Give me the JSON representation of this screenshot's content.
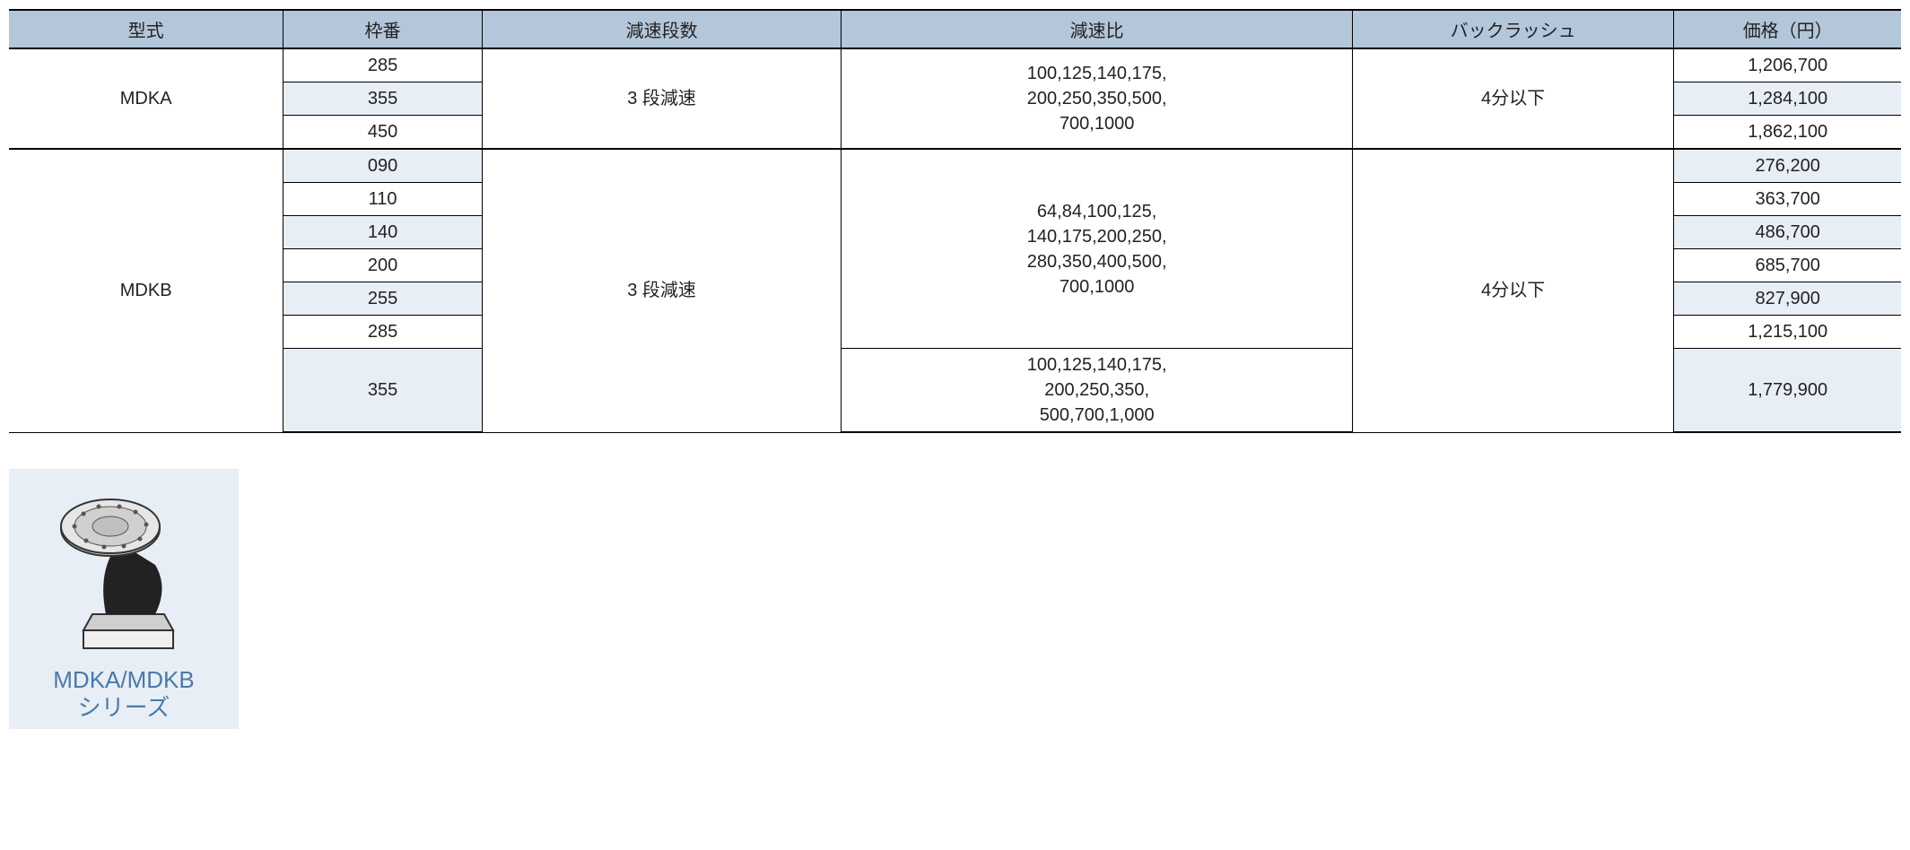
{
  "table": {
    "headers": [
      "型式",
      "枠番",
      "減速段数",
      "減速比",
      "バックラッシュ",
      "価格（円）"
    ],
    "col_widths_pct": [
      14.5,
      10.5,
      19,
      27,
      17,
      12
    ],
    "header_bg": "#b3c6da",
    "alt_bg": "#e8eef5",
    "groups": [
      {
        "model": "MDKA",
        "stage": "3 段減速",
        "backlash": "4分以下",
        "ratio_blocks": [
          {
            "lines": [
              "100,125,140,175,",
              "200,250,350,500,",
              "700,1000"
            ],
            "row_span": 3
          }
        ],
        "rows": [
          {
            "frame": "285",
            "price": "1,206,700",
            "alt": false
          },
          {
            "frame": "355",
            "price": "1,284,100",
            "alt": true
          },
          {
            "frame": "450",
            "price": "1,862,100",
            "alt": false
          }
        ]
      },
      {
        "model": "MDKB",
        "stage": "3 段減速",
        "backlash": "4分以下",
        "ratio_blocks": [
          {
            "lines": [
              "64,84,100,125,",
              "140,175,200,250,",
              "280,350,400,500,",
              "700,1000"
            ],
            "row_span": 6
          },
          {
            "lines": [
              "100,125,140,175,",
              "200,250,350,",
              "500,700,1,000"
            ],
            "row_span": 1
          }
        ],
        "rows": [
          {
            "frame": "090",
            "price": "276,200",
            "alt": true
          },
          {
            "frame": "110",
            "price": "363,700",
            "alt": false
          },
          {
            "frame": "140",
            "price": "486,700",
            "alt": true
          },
          {
            "frame": "200",
            "price": "685,700",
            "alt": false
          },
          {
            "frame": "255",
            "price": "827,900",
            "alt": true
          },
          {
            "frame": "285",
            "price": "1,215,100",
            "alt": false
          },
          {
            "frame": "355",
            "price": "1,779,900",
            "alt": true
          }
        ]
      }
    ]
  },
  "product_card": {
    "label_line1": "MDKA/MDKB",
    "label_line2": "シリーズ",
    "bg": "#e8eef5",
    "label_color": "#4a7aa8"
  }
}
